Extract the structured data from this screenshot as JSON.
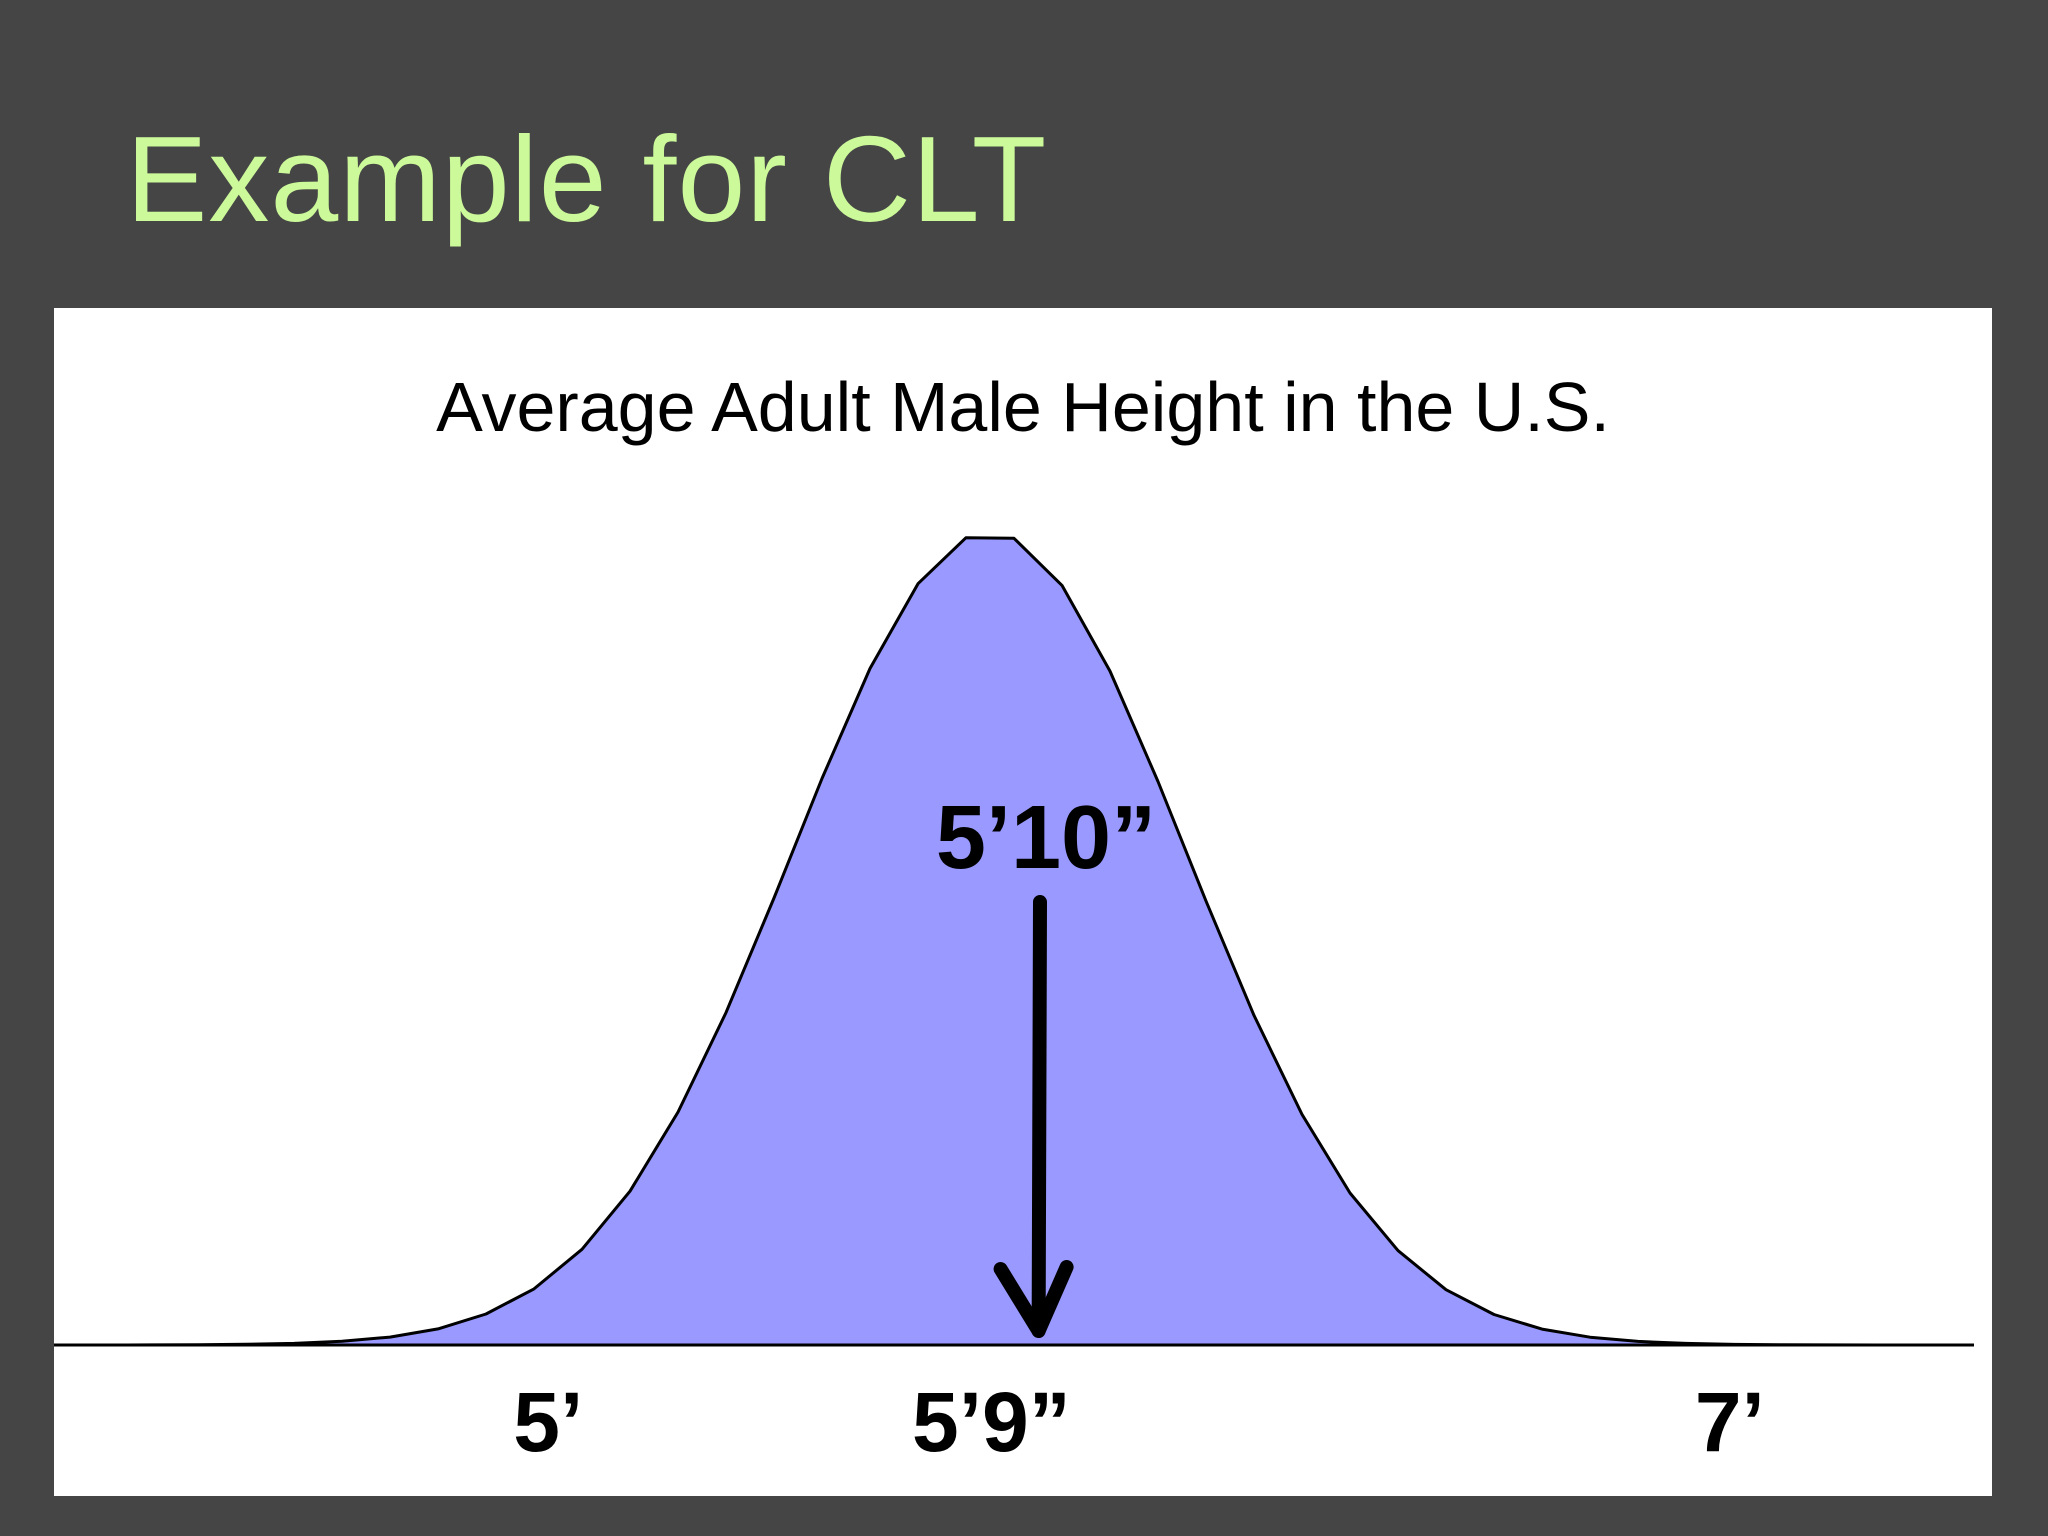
{
  "slide": {
    "title": "Example for CLT",
    "title_color": "#ccf99a",
    "background": "#454545"
  },
  "chart_data": {
    "type": "area",
    "title": "Average Adult Male Height in the U.S.",
    "xlabel": "",
    "ylabel": "",
    "x_units": "inches",
    "xlim": [
      50,
      89
    ],
    "distribution": "normal",
    "mean": 69,
    "std": 4,
    "x_ticks": [
      {
        "value": 60,
        "label": "5’"
      },
      {
        "value": 69,
        "label": "5’9”"
      },
      {
        "value": 84,
        "label": "7’"
      }
    ],
    "annotation": {
      "label": "5’10”",
      "value": 70,
      "arrow": true
    },
    "fill_color": "#9999ff",
    "line_color": "#000000",
    "grid": false,
    "legend": "none"
  }
}
